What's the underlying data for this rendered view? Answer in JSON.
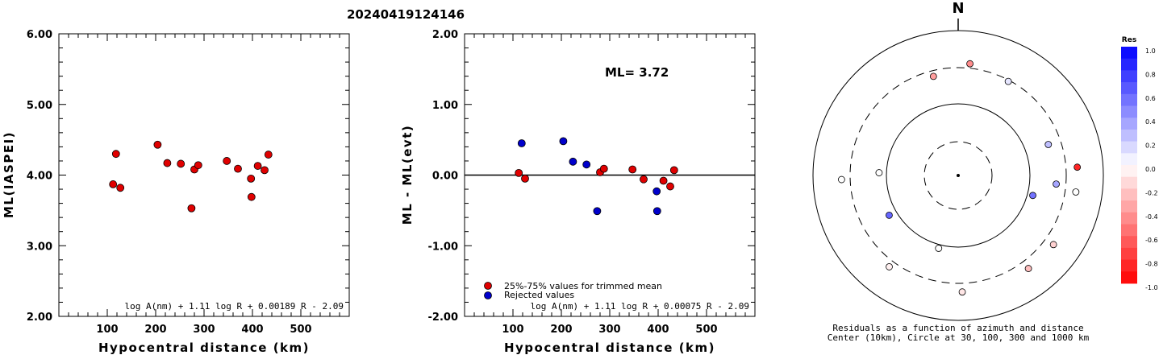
{
  "title": "20240419124146",
  "colors": {
    "trimmed": "#e00000",
    "rejected": "#0000cc",
    "axis": "#000000"
  },
  "chart_data": [
    {
      "type": "scatter",
      "xlabel": "Hypocentral distance (km)",
      "ylabel": "ML(IASPEI)",
      "xlim": [
        0,
        600
      ],
      "ylim": [
        2.0,
        6.0
      ],
      "xticks": [
        "100",
        "200",
        "300",
        "400",
        "500"
      ],
      "yticks": [
        "2.00",
        "3.00",
        "4.00",
        "5.00",
        "6.00"
      ],
      "formula": "log A(nm) + 1.11 log R + 0.00189 R - 2.09",
      "points": [
        {
          "x": 112,
          "y": 3.87
        },
        {
          "x": 118,
          "y": 4.3
        },
        {
          "x": 127,
          "y": 3.82
        },
        {
          "x": 204,
          "y": 4.43
        },
        {
          "x": 224,
          "y": 4.17
        },
        {
          "x": 252,
          "y": 4.16
        },
        {
          "x": 274,
          "y": 3.53
        },
        {
          "x": 280,
          "y": 4.08
        },
        {
          "x": 288,
          "y": 4.14
        },
        {
          "x": 347,
          "y": 4.2
        },
        {
          "x": 370,
          "y": 4.09
        },
        {
          "x": 397,
          "y": 3.95
        },
        {
          "x": 398,
          "y": 3.69
        },
        {
          "x": 411,
          "y": 4.13
        },
        {
          "x": 425,
          "y": 4.07
        },
        {
          "x": 433,
          "y": 4.29
        }
      ]
    },
    {
      "type": "scatter",
      "xlabel": "Hypocentral distance (km)",
      "ylabel": "ML - ML(evt)",
      "xlim": [
        0,
        600
      ],
      "ylim": [
        -2.0,
        2.0
      ],
      "xticks": [
        "100",
        "200",
        "300",
        "400",
        "500"
      ],
      "yticks": [
        "-2.00",
        "-1.00",
        "0.00",
        "1.00",
        "2.00"
      ],
      "annotation": "ML= 3.72",
      "formula": "log A(nm) + 1.11 log R + 0.00075 R - 2.09",
      "legend": [
        "25%-75% values for trimmed mean",
        "Rejected values"
      ],
      "series": [
        {
          "name": "25%-75% values for trimmed mean",
          "points": [
            {
              "x": 112,
              "y": 0.03
            },
            {
              "x": 125,
              "y": -0.05
            },
            {
              "x": 280,
              "y": 0.04
            },
            {
              "x": 288,
              "y": 0.09
            },
            {
              "x": 347,
              "y": 0.08
            },
            {
              "x": 370,
              "y": -0.06
            },
            {
              "x": 411,
              "y": -0.08
            },
            {
              "x": 425,
              "y": -0.16
            },
            {
              "x": 433,
              "y": 0.07
            }
          ]
        },
        {
          "name": "Rejected values",
          "points": [
            {
              "x": 118,
              "y": 0.45
            },
            {
              "x": 204,
              "y": 0.48
            },
            {
              "x": 224,
              "y": 0.19
            },
            {
              "x": 252,
              "y": 0.15
            },
            {
              "x": 274,
              "y": -0.51
            },
            {
              "x": 397,
              "y": -0.23
            },
            {
              "x": 398,
              "y": -0.51
            }
          ]
        }
      ]
    },
    {
      "type": "scatter",
      "subtype": "polar",
      "north_label": "N",
      "caption1": "Residuals as a function of azimuth and distance",
      "caption2": "Center (10km), Circle at 30, 100, 300 and 1000 km",
      "colorbar_title": "Res",
      "colorbar_ticks": [
        "1.0",
        "0.8",
        "0.6",
        "0.4",
        "0.2",
        "0.0",
        "-0.2",
        "-0.4",
        "-0.6",
        "-0.8",
        "-1.0"
      ],
      "stations": [
        {
          "azimuth": -14,
          "distance": 252,
          "residual": -0.38
        },
        {
          "azimuth": 6,
          "distance": 347,
          "residual": -0.45
        },
        {
          "azimuth": 28,
          "distance": 288,
          "residual": 0.1
        },
        {
          "azimuth": 71,
          "distance": 204,
          "residual": 0.25
        },
        {
          "azimuth": 86,
          "distance": 433,
          "residual": -0.85
        },
        {
          "azimuth": 95,
          "distance": 224,
          "residual": 0.35
        },
        {
          "azimuth": 98,
          "distance": 425,
          "residual": 0.0
        },
        {
          "azimuth": 105,
          "distance": 118,
          "residual": 0.55
        },
        {
          "azimuth": 126,
          "distance": 411,
          "residual": -0.18
        },
        {
          "azimuth": 143,
          "distance": 397,
          "residual": -0.25
        },
        {
          "azimuth": 178,
          "distance": 398,
          "residual": -0.1
        },
        {
          "azimuth": 195,
          "distance": 112,
          "residual": 0.0
        },
        {
          "azimuth": 217,
          "distance": 370,
          "residual": -0.06
        },
        {
          "azimuth": 240,
          "distance": 127,
          "residual": 0.6
        },
        {
          "azimuth": 268,
          "distance": 397,
          "residual": 0.0
        },
        {
          "azimuth": 272,
          "distance": 125,
          "residual": 0.01
        }
      ]
    }
  ]
}
